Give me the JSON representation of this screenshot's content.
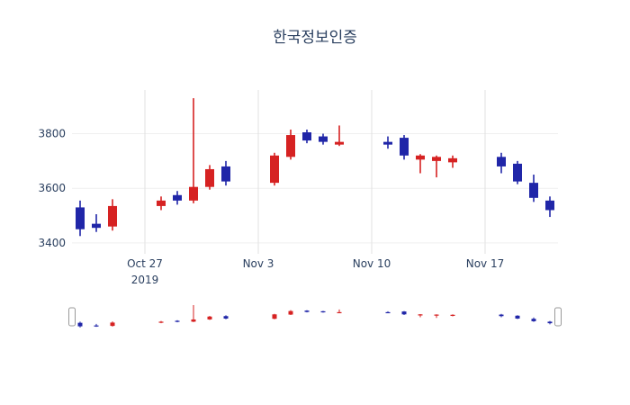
{
  "title": "한국정보인증",
  "chart_data": {
    "type": "candlestick",
    "x": [
      "2019-10-23",
      "2019-10-24",
      "2019-10-25",
      "2019-10-28",
      "2019-10-29",
      "2019-10-30",
      "2019-10-31",
      "2019-11-01",
      "2019-11-04",
      "2019-11-05",
      "2019-11-06",
      "2019-11-07",
      "2019-11-08",
      "2019-11-11",
      "2019-11-12",
      "2019-11-13",
      "2019-11-14",
      "2019-11-15",
      "2019-11-18",
      "2019-11-19",
      "2019-11-20",
      "2019-11-21"
    ],
    "open": [
      3530,
      3470,
      3460,
      3535,
      3575,
      3555,
      3605,
      3680,
      3620,
      3715,
      3805,
      3790,
      3760,
      3770,
      3785,
      3705,
      3700,
      3695,
      3715,
      3690,
      3620,
      3555
    ],
    "high": [
      3555,
      3505,
      3560,
      3570,
      3590,
      3930,
      3685,
      3700,
      3730,
      3815,
      3815,
      3800,
      3830,
      3790,
      3795,
      3725,
      3720,
      3720,
      3730,
      3700,
      3650,
      3570
    ],
    "low": [
      3425,
      3440,
      3445,
      3520,
      3540,
      3545,
      3595,
      3610,
      3610,
      3705,
      3765,
      3760,
      3755,
      3745,
      3705,
      3655,
      3640,
      3675,
      3655,
      3615,
      3550,
      3495
    ],
    "close": [
      3450,
      3455,
      3535,
      3555,
      3555,
      3605,
      3670,
      3625,
      3720,
      3795,
      3775,
      3770,
      3770,
      3760,
      3720,
      3720,
      3715,
      3710,
      3680,
      3625,
      3565,
      3520
    ],
    "increasing_color": "#d62222",
    "decreasing_color": "#2026a8",
    "ylim": [
      3360,
      3960
    ],
    "slider_ylim": [
      3340,
      3990
    ],
    "y_ticks": [
      3400,
      3600,
      3800
    ],
    "x_ticks": [
      {
        "date": "2019-10-27",
        "label": "Oct 27",
        "year": "2019"
      },
      {
        "date": "2019-11-03",
        "label": "Nov 3"
      },
      {
        "date": "2019-11-10",
        "label": "Nov 10"
      },
      {
        "date": "2019-11-17",
        "label": "Nov 17"
      }
    ],
    "grid": true,
    "legend_position": "none",
    "rangeslider": true
  }
}
